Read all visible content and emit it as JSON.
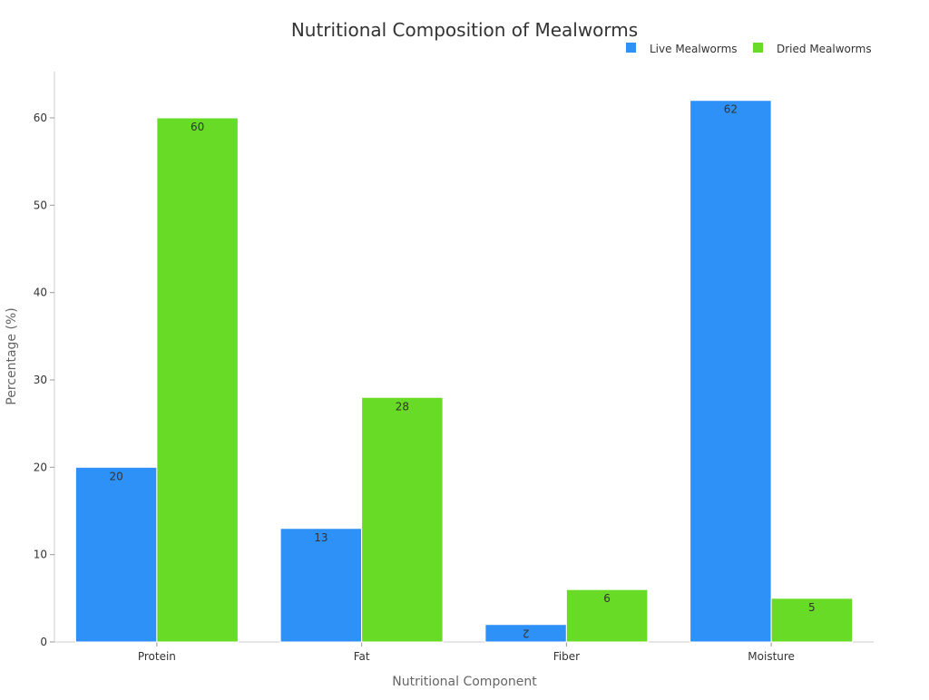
{
  "chart_data": {
    "type": "bar",
    "title": "Nutritional Composition of Mealworms",
    "xlabel": "Nutritional Component",
    "ylabel": "Percentage (%)",
    "categories": [
      "Protein",
      "Fat",
      "Fiber",
      "Moisture"
    ],
    "series": [
      {
        "name": "Live Mealworms",
        "values": [
          20,
          13,
          2,
          62
        ],
        "color": "#2e91f8"
      },
      {
        "name": "Dried Mealworms",
        "values": [
          60,
          28,
          6,
          5
        ],
        "color": "#67db26"
      }
    ],
    "ylim": [
      0,
      65
    ],
    "yticks": [
      0,
      10,
      20,
      30,
      40,
      50,
      60
    ],
    "grid": false,
    "legend": "top-right",
    "data_labels": true
  }
}
